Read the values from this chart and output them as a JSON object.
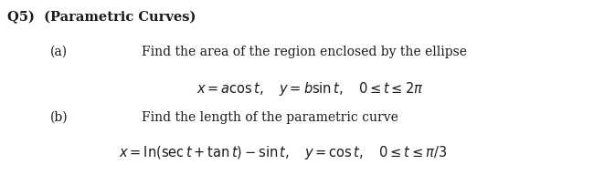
{
  "title": "Q5)  (Parametric Curves)",
  "part_a_label": "(a)",
  "part_a_text": "Find the area of the region enclosed by the ellipse",
  "part_a_eq": "$x = a\\cos t, \\quad y = b\\sin t, \\quad 0 \\leq t \\leq 2\\pi$",
  "part_b_label": "(b)",
  "part_b_text": "Find the length of the parametric curve",
  "part_b_eq": "$x = \\ln(\\sec t + \\tan t) - \\sin t, \\quad y = \\cos t, \\quad 0 \\leq t \\leq \\pi/3$",
  "bg_color": "#ffffff",
  "text_color": "#1a1a1a",
  "title_fontsize": 10.5,
  "label_fontsize": 10,
  "text_fontsize": 10,
  "eq_fontsize": 10.5,
  "fig_width": 6.73,
  "fig_height": 1.92,
  "dpi": 100
}
